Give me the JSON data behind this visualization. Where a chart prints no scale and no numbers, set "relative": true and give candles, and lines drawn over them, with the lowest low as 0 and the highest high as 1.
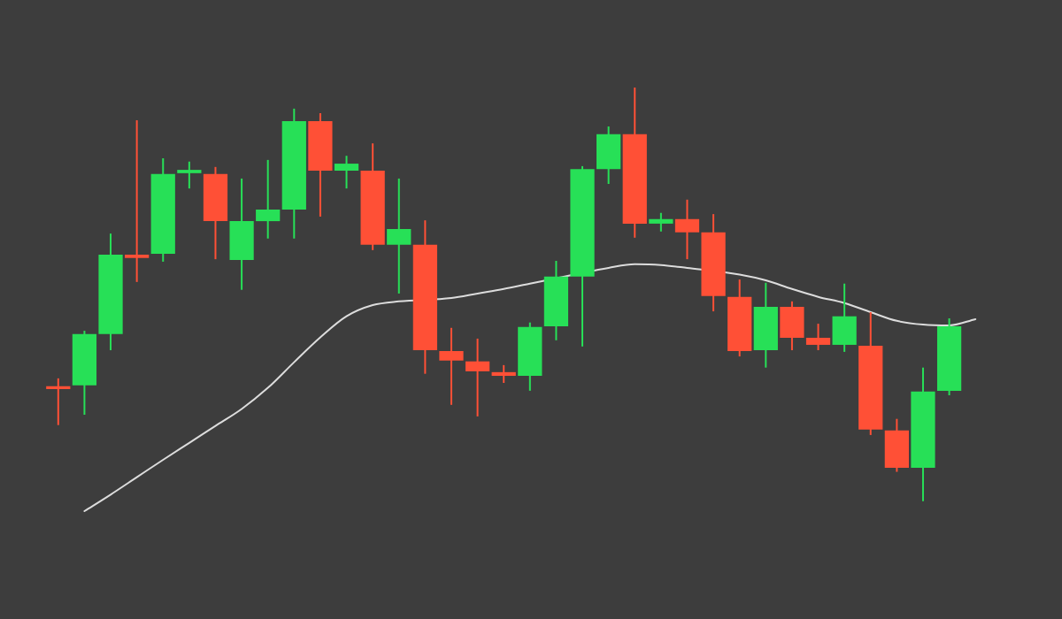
{
  "chart_data": {
    "type": "candlestick",
    "relative": true,
    "tick_labels": false,
    "categories": [
      null,
      null,
      null,
      null,
      null,
      null,
      null,
      null,
      null,
      null,
      null,
      null,
      null,
      null,
      null,
      null,
      null,
      null,
      null,
      null,
      null,
      null,
      null,
      null,
      null,
      null,
      null,
      null,
      null,
      null,
      null,
      null,
      null,
      null,
      null,
      null
    ],
    "series": [
      {
        "ohlc": [
          [
            0.278,
            0.297,
            0.184,
            0.271
          ],
          [
            0.28,
            0.412,
            0.209,
            0.404
          ],
          [
            0.404,
            0.647,
            0.365,
            0.596
          ],
          [
            0.596,
            0.921,
            0.53,
            0.588
          ],
          [
            0.598,
            0.829,
            0.579,
            0.791
          ],
          [
            0.793,
            0.821,
            0.756,
            0.801
          ],
          [
            0.791,
            0.808,
            0.585,
            0.677
          ],
          [
            0.583,
            0.78,
            0.511,
            0.677
          ],
          [
            0.677,
            0.825,
            0.635,
            0.705
          ],
          [
            0.705,
            0.949,
            0.635,
            0.919
          ],
          [
            0.919,
            0.938,
            0.688,
            0.799
          ],
          [
            0.799,
            0.835,
            0.756,
            0.816
          ],
          [
            0.799,
            0.865,
            0.607,
            0.62
          ],
          [
            0.62,
            0.78,
            0.502,
            0.658
          ],
          [
            0.62,
            0.679,
            0.308,
            0.365
          ],
          [
            0.363,
            0.419,
            0.233,
            0.34
          ],
          [
            0.338,
            0.393,
            0.205,
            0.314
          ],
          [
            0.312,
            0.329,
            0.286,
            0.303
          ],
          [
            0.303,
            0.432,
            0.267,
            0.421
          ],
          [
            0.423,
            0.581,
            0.389,
            0.543
          ],
          [
            0.543,
            0.81,
            0.374,
            0.803
          ],
          [
            0.803,
            0.906,
            0.767,
            0.887
          ],
          [
            0.887,
            1,
            0.637,
            0.671
          ],
          [
            0.671,
            0.697,
            0.652,
            0.682
          ],
          [
            0.682,
            0.729,
            0.585,
            0.65
          ],
          [
            0.65,
            0.694,
            0.459,
            0.496
          ],
          [
            0.494,
            0.536,
            0.35,
            0.363
          ],
          [
            0.365,
            0.528,
            0.323,
            0.47
          ],
          [
            0.47,
            0.483,
            0.365,
            0.395
          ],
          [
            0.395,
            0.429,
            0.365,
            0.378
          ],
          [
            0.378,
            0.526,
            0.361,
            0.447
          ],
          [
            0.376,
            0.457,
            0.16,
            0.173
          ],
          [
            0.171,
            0.199,
            0.071,
            0.081
          ],
          [
            0.081,
            0.323,
            0,
            0.265
          ],
          [
            0.267,
            0.442,
            0.256,
            0.423
          ],
          null
        ],
        "colors": [
          "#ff5036",
          "#27e057",
          "#27e057",
          "#ff5036",
          "#27e057",
          "#27e057",
          "#ff5036",
          "#27e057",
          "#27e057",
          "#27e057",
          "#ff5036",
          "#27e057",
          "#ff5036",
          "#27e057",
          "#ff5036",
          "#ff5036",
          "#ff5036",
          "#ff5036",
          "#27e057",
          "#27e057",
          "#27e057",
          "#27e057",
          "#ff5036",
          "#27e057",
          "#ff5036",
          "#ff5036",
          "#ff5036",
          "#27e057",
          "#ff5036",
          "#ff5036",
          "#27e057",
          "#ff5036",
          "#ff5036",
          "#27e057",
          "#27e057",
          null
        ]
      },
      {
        "type": "line",
        "color": "#dcdcdc",
        "values": [
          null,
          -0.024,
          0.016,
          0.058,
          0.1,
          0.141,
          0.182,
          0.223,
          0.274,
          0.336,
          0.396,
          0.447,
          0.474,
          0.483,
          null,
          0.491,
          0.502,
          0.513,
          0.526,
          null,
          null,
          0.564,
          0.573,
          0.571,
          0.564,
          null,
          0.548,
          0.534,
          0.513,
          0.494,
          0.479,
          0.457,
          0.436,
          0.427,
          0.425,
          0.44
        ]
      }
    ]
  }
}
